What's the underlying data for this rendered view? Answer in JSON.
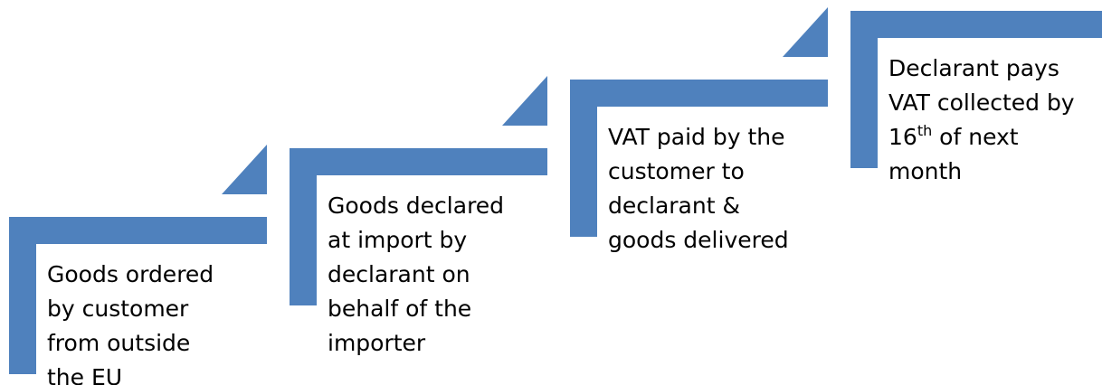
{
  "steps": [
    {
      "lines": [
        "Goods ordered",
        "by customer",
        "from outside",
        "the EU"
      ]
    },
    {
      "lines": [
        "Goods declared",
        "at import by",
        "declarant on",
        "behalf of the",
        "importer"
      ]
    },
    {
      "lines": [
        "VAT paid by the",
        "customer to",
        "declarant &",
        "goods delivered"
      ]
    },
    {
      "lines": [
        "Declarant pays",
        "VAT collected by",
        {
          "base": "16",
          "sup": "th",
          "rest": " of next"
        },
        "month"
      ]
    }
  ]
}
